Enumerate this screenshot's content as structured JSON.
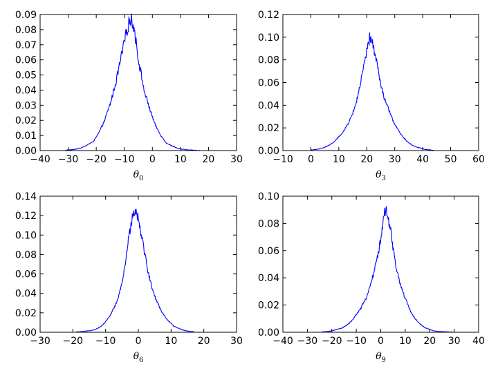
{
  "chart_data": [
    {
      "type": "line",
      "xlabel": "θ",
      "xlabel_sub": "0",
      "xlim": [
        -40,
        30
      ],
      "ylim": [
        0,
        0.09
      ],
      "xticks": [
        -40,
        -30,
        -20,
        -10,
        0,
        10,
        20,
        30
      ],
      "yticks": [
        0.0,
        0.01,
        0.02,
        0.03,
        0.04,
        0.05,
        0.06,
        0.07,
        0.08,
        0.09
      ],
      "x_tick_labels": [
        "−40",
        "−30",
        "−20",
        "−10",
        "0",
        "10",
        "20",
        "30"
      ],
      "y_tick_labels": [
        "0.00",
        "0.01",
        "0.02",
        "0.03",
        "0.04",
        "0.05",
        "0.06",
        "0.07",
        "0.08",
        "0.09"
      ],
      "series": [
        {
          "color": "#0000ff",
          "x": [
            -31,
            -29,
            -27,
            -25,
            -23,
            -21,
            -19,
            -17,
            -15,
            -13,
            -11,
            -9,
            -8,
            -7,
            -6,
            -5,
            -4,
            -3,
            -1,
            1,
            3,
            5,
            7,
            9,
            11,
            13,
            15,
            17
          ],
          "y": [
            0.0003,
            0.0005,
            0.001,
            0.002,
            0.004,
            0.006,
            0.012,
            0.02,
            0.031,
            0.045,
            0.063,
            0.08,
            0.087,
            0.085,
            0.075,
            0.06,
            0.051,
            0.04,
            0.028,
            0.017,
            0.01,
            0.005,
            0.003,
            0.0015,
            0.0008,
            0.0004,
            0.0002,
            0.0001
          ]
        }
      ]
    },
    {
      "type": "line",
      "xlabel": "θ",
      "xlabel_sub": "3",
      "xlim": [
        -10,
        60
      ],
      "ylim": [
        0,
        0.12
      ],
      "xticks": [
        -10,
        0,
        10,
        20,
        30,
        40,
        50,
        60
      ],
      "yticks": [
        0.0,
        0.02,
        0.04,
        0.06,
        0.08,
        0.1,
        0.12
      ],
      "x_tick_labels": [
        "−10",
        "0",
        "10",
        "20",
        "30",
        "40",
        "50",
        "60"
      ],
      "y_tick_labels": [
        "0.00",
        "0.02",
        "0.04",
        "0.06",
        "0.08",
        "0.10",
        "0.12"
      ],
      "series": [
        {
          "color": "#0000ff",
          "x": [
            0,
            2,
            4,
            6,
            8,
            10,
            12,
            14,
            16,
            18,
            19,
            20,
            21,
            22,
            23,
            24,
            25,
            26,
            28,
            30,
            32,
            34,
            36,
            38,
            40,
            42,
            44
          ],
          "y": [
            0.0005,
            0.001,
            0.002,
            0.004,
            0.007,
            0.012,
            0.018,
            0.027,
            0.04,
            0.062,
            0.075,
            0.087,
            0.099,
            0.095,
            0.085,
            0.072,
            0.058,
            0.048,
            0.035,
            0.023,
            0.015,
            0.009,
            0.005,
            0.003,
            0.0015,
            0.0007,
            0.0003
          ]
        }
      ]
    },
    {
      "type": "line",
      "xlabel": "θ",
      "xlabel_sub": "6",
      "xlim": [
        -30,
        30
      ],
      "ylim": [
        0,
        0.14
      ],
      "xticks": [
        -30,
        -20,
        -10,
        0,
        10,
        20,
        30
      ],
      "yticks": [
        0.0,
        0.02,
        0.04,
        0.06,
        0.08,
        0.1,
        0.12,
        0.14
      ],
      "x_tick_labels": [
        "−30",
        "−20",
        "−10",
        "0",
        "10",
        "20",
        "30"
      ],
      "y_tick_labels": [
        "0.00",
        "0.02",
        "0.04",
        "0.06",
        "0.08",
        "0.10",
        "0.12",
        "0.14"
      ],
      "series": [
        {
          "color": "#0000ff",
          "x": [
            -19,
            -17,
            -15,
            -13,
            -11,
            -9,
            -7,
            -6,
            -5,
            -4,
            -3,
            -2,
            -1,
            0,
            1,
            2,
            3,
            4,
            5,
            7,
            9,
            11,
            13,
            15,
            17
          ],
          "y": [
            0.0003,
            0.0007,
            0.0015,
            0.003,
            0.007,
            0.015,
            0.028,
            0.037,
            0.05,
            0.07,
            0.095,
            0.118,
            0.126,
            0.118,
            0.1,
            0.08,
            0.062,
            0.048,
            0.037,
            0.022,
            0.012,
            0.006,
            0.003,
            0.0012,
            0.0005
          ]
        }
      ]
    },
    {
      "type": "line",
      "xlabel": "θ",
      "xlabel_sub": "9",
      "xlim": [
        -40,
        40
      ],
      "ylim": [
        0,
        0.1
      ],
      "xticks": [
        -40,
        -30,
        -20,
        -10,
        0,
        10,
        20,
        30,
        40
      ],
      "yticks": [
        0.0,
        0.02,
        0.04,
        0.06,
        0.08,
        0.1
      ],
      "x_tick_labels": [
        "−40",
        "−30",
        "−20",
        "−10",
        "0",
        "10",
        "20",
        "30",
        "40"
      ],
      "y_tick_labels": [
        "0.00",
        "0.02",
        "0.04",
        "0.06",
        "0.08",
        "0.10"
      ],
      "series": [
        {
          "color": "#0000ff",
          "x": [
            -24,
            -22,
            -20,
            -18,
            -16,
            -14,
            -12,
            -10,
            -8,
            -6,
            -4,
            -2,
            0,
            1,
            2,
            3,
            4,
            5,
            6,
            8,
            10,
            12,
            14,
            16,
            18,
            20,
            22,
            24,
            26,
            28,
            30
          ],
          "y": [
            0.0003,
            0.0005,
            0.001,
            0.002,
            0.003,
            0.005,
            0.008,
            0.013,
            0.018,
            0.025,
            0.036,
            0.05,
            0.068,
            0.082,
            0.09,
            0.083,
            0.075,
            0.062,
            0.05,
            0.035,
            0.025,
            0.016,
            0.01,
            0.006,
            0.0035,
            0.002,
            0.001,
            0.0006,
            0.0003,
            0.0002,
            0.0001
          ]
        }
      ]
    }
  ]
}
